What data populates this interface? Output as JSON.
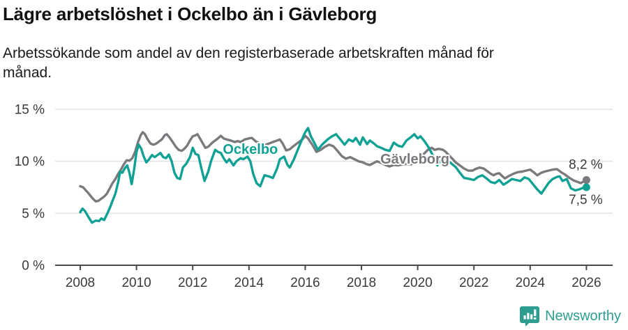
{
  "title": "Lägre arbetslöshet i Ockelbo än i Gävleborg",
  "subtitle": {
    "line1": "Arbetssökande som andel av den registerbaserade arbetskraften månad för",
    "line2": "månad."
  },
  "footer": {
    "brand": "Newsworthy",
    "logo_icon": "newsworthy-chart-bubble-icon"
  },
  "colors": {
    "ockelbo_teal": "#0fa194",
    "gavleborg_gray": "#7a7a7e",
    "gridline": "#e2e2e2",
    "axis": "#4b4b4b",
    "tick_text": "#3a3a3a",
    "title_text": "#111111",
    "brand_teal": "#2d9d90",
    "background": "#ffffff"
  },
  "chart_data": {
    "type": "line",
    "title": "Lägre arbetslöshet i Ockelbo än i Gävleborg",
    "subtitle": "Arbetssökande som andel av den registerbaserade arbetskraften månad för månad.",
    "xlabel": "",
    "ylabel": "",
    "grid": "horizontal",
    "legend_position": "inline-labels",
    "xlim": [
      2007.1,
      2026.9
    ],
    "ylim": [
      0,
      15.5
    ],
    "x_ticks": [
      2008,
      2010,
      2012,
      2014,
      2016,
      2018,
      2020,
      2022,
      2024,
      2026
    ],
    "y_ticks": [
      {
        "value": 0,
        "label": "0 %"
      },
      {
        "value": 5,
        "label": "5 %"
      },
      {
        "value": 10,
        "label": "10 %"
      },
      {
        "value": 15,
        "label": "15 %"
      }
    ],
    "series": [
      {
        "name": "Gävleborg",
        "color": "#7a7a7e",
        "label_anchor": {
          "x": 2019.9,
          "y": 10.25
        },
        "end_value": 8.2,
        "end_label": "8,2 %",
        "points": [
          [
            2008.0,
            7.6
          ],
          [
            2008.1,
            7.5
          ],
          [
            2008.2,
            7.2
          ],
          [
            2008.3,
            6.9
          ],
          [
            2008.45,
            6.4
          ],
          [
            2008.55,
            6.15
          ],
          [
            2008.65,
            6.2
          ],
          [
            2008.75,
            6.4
          ],
          [
            2008.85,
            6.6
          ],
          [
            2008.95,
            6.9
          ],
          [
            2009.05,
            7.4
          ],
          [
            2009.15,
            7.9
          ],
          [
            2009.25,
            8.3
          ],
          [
            2009.35,
            8.8
          ],
          [
            2009.45,
            9.2
          ],
          [
            2009.55,
            9.7
          ],
          [
            2009.65,
            10.1
          ],
          [
            2009.75,
            10.05
          ],
          [
            2009.85,
            10.3
          ],
          [
            2009.95,
            10.9
          ],
          [
            2010.05,
            11.8
          ],
          [
            2010.15,
            12.5
          ],
          [
            2010.22,
            12.8
          ],
          [
            2010.3,
            12.6
          ],
          [
            2010.4,
            12.1
          ],
          [
            2010.5,
            11.7
          ],
          [
            2010.6,
            11.6
          ],
          [
            2010.7,
            11.7
          ],
          [
            2010.8,
            11.9
          ],
          [
            2010.9,
            12.1
          ],
          [
            2011.0,
            12.5
          ],
          [
            2011.08,
            12.6
          ],
          [
            2011.2,
            12.2
          ],
          [
            2011.3,
            11.8
          ],
          [
            2011.4,
            11.4
          ],
          [
            2011.5,
            11.1
          ],
          [
            2011.6,
            11.0
          ],
          [
            2011.7,
            11.2
          ],
          [
            2011.8,
            11.5
          ],
          [
            2011.9,
            12.0
          ],
          [
            2012.0,
            12.4
          ],
          [
            2012.1,
            12.5
          ],
          [
            2012.17,
            12.6
          ],
          [
            2012.3,
            12.0
          ],
          [
            2012.45,
            11.3
          ],
          [
            2012.55,
            11.4
          ],
          [
            2012.7,
            11.8
          ],
          [
            2012.85,
            12.1
          ],
          [
            2013.0,
            12.45
          ],
          [
            2013.1,
            12.2
          ],
          [
            2013.2,
            12.1
          ],
          [
            2013.35,
            12.0
          ],
          [
            2013.5,
            11.85
          ],
          [
            2013.6,
            11.95
          ],
          [
            2013.7,
            11.85
          ],
          [
            2013.85,
            12.1
          ],
          [
            2014.0,
            12.2
          ],
          [
            2014.1,
            12.25
          ],
          [
            2014.25,
            11.9
          ],
          [
            2014.4,
            11.7
          ],
          [
            2014.55,
            11.55
          ],
          [
            2014.7,
            11.7
          ],
          [
            2014.85,
            11.85
          ],
          [
            2015.0,
            12.0
          ],
          [
            2015.1,
            12.1
          ],
          [
            2015.2,
            11.7
          ],
          [
            2015.32,
            11.05
          ],
          [
            2015.45,
            11.15
          ],
          [
            2015.6,
            11.5
          ],
          [
            2015.75,
            11.8
          ],
          [
            2015.9,
            12.1
          ],
          [
            2016.0,
            12.45
          ],
          [
            2016.1,
            12.2
          ],
          [
            2016.25,
            11.6
          ],
          [
            2016.4,
            10.9
          ],
          [
            2016.55,
            11.1
          ],
          [
            2016.7,
            11.4
          ],
          [
            2016.85,
            11.6
          ],
          [
            2017.0,
            11.45
          ],
          [
            2017.15,
            11.0
          ],
          [
            2017.3,
            10.5
          ],
          [
            2017.45,
            10.25
          ],
          [
            2017.6,
            10.4
          ],
          [
            2017.75,
            10.2
          ],
          [
            2017.9,
            10.0
          ],
          [
            2018.05,
            9.9
          ],
          [
            2018.2,
            9.7
          ],
          [
            2018.3,
            9.65
          ],
          [
            2018.45,
            9.85
          ],
          [
            2018.55,
            10.0
          ],
          [
            2018.7,
            9.85
          ],
          [
            2018.85,
            9.65
          ],
          [
            2019.0,
            9.5
          ],
          [
            2019.15,
            9.65
          ],
          [
            2019.3,
            9.6
          ],
          [
            2019.45,
            9.7
          ],
          [
            2019.6,
            9.75
          ],
          [
            2019.75,
            9.7
          ],
          [
            2019.9,
            9.85
          ],
          [
            2020.0,
            10.0
          ],
          [
            2020.1,
            10.3
          ],
          [
            2020.25,
            10.8
          ],
          [
            2020.4,
            11.2
          ],
          [
            2020.5,
            11.3
          ],
          [
            2020.6,
            11.1
          ],
          [
            2020.75,
            11.2
          ],
          [
            2020.9,
            11.1
          ],
          [
            2021.0,
            10.9
          ],
          [
            2021.1,
            10.6
          ],
          [
            2021.25,
            10.2
          ],
          [
            2021.35,
            9.9
          ],
          [
            2021.5,
            9.6
          ],
          [
            2021.65,
            9.3
          ],
          [
            2021.8,
            9.1
          ],
          [
            2021.95,
            9.1
          ],
          [
            2022.05,
            9.25
          ],
          [
            2022.2,
            9.4
          ],
          [
            2022.35,
            9.3
          ],
          [
            2022.5,
            9.0
          ],
          [
            2022.6,
            8.8
          ],
          [
            2022.7,
            8.65
          ],
          [
            2022.8,
            8.8
          ],
          [
            2022.9,
            8.85
          ],
          [
            2023.0,
            8.6
          ],
          [
            2023.1,
            8.35
          ],
          [
            2023.25,
            8.6
          ],
          [
            2023.4,
            8.8
          ],
          [
            2023.55,
            8.95
          ],
          [
            2023.7,
            9.0
          ],
          [
            2023.85,
            9.1
          ],
          [
            2024.0,
            9.2
          ],
          [
            2024.1,
            9.0
          ],
          [
            2024.25,
            8.65
          ],
          [
            2024.4,
            8.9
          ],
          [
            2024.5,
            9.0
          ],
          [
            2024.65,
            9.1
          ],
          [
            2024.8,
            9.2
          ],
          [
            2024.95,
            9.25
          ],
          [
            2025.1,
            8.95
          ],
          [
            2025.25,
            8.7
          ],
          [
            2025.4,
            8.4
          ],
          [
            2025.55,
            8.15
          ],
          [
            2025.7,
            8.0
          ],
          [
            2025.8,
            7.9
          ],
          [
            2025.9,
            8.05
          ],
          [
            2026.0,
            8.2
          ]
        ]
      },
      {
        "name": "Ockelbo",
        "color": "#0fa194",
        "label_anchor": {
          "x": 2014.05,
          "y": 11.2
        },
        "end_value": 7.5,
        "end_label": "7,5 %",
        "points": [
          [
            2008.0,
            5.1
          ],
          [
            2008.08,
            5.45
          ],
          [
            2008.17,
            5.2
          ],
          [
            2008.3,
            4.6
          ],
          [
            2008.42,
            4.1
          ],
          [
            2008.55,
            4.3
          ],
          [
            2008.67,
            4.25
          ],
          [
            2008.75,
            4.5
          ],
          [
            2008.85,
            4.35
          ],
          [
            2008.95,
            4.9
          ],
          [
            2009.05,
            5.5
          ],
          [
            2009.15,
            6.2
          ],
          [
            2009.25,
            6.9
          ],
          [
            2009.35,
            8.0
          ],
          [
            2009.42,
            9.0
          ],
          [
            2009.5,
            8.9
          ],
          [
            2009.58,
            9.3
          ],
          [
            2009.67,
            9.6
          ],
          [
            2009.75,
            8.9
          ],
          [
            2009.83,
            7.8
          ],
          [
            2009.92,
            9.3
          ],
          [
            2010.0,
            10.9
          ],
          [
            2010.08,
            11.6
          ],
          [
            2010.17,
            11.2
          ],
          [
            2010.25,
            10.5
          ],
          [
            2010.35,
            9.9
          ],
          [
            2010.45,
            10.2
          ],
          [
            2010.55,
            10.6
          ],
          [
            2010.65,
            10.4
          ],
          [
            2010.75,
            10.6
          ],
          [
            2010.85,
            10.8
          ],
          [
            2010.95,
            10.4
          ],
          [
            2011.05,
            10.3
          ],
          [
            2011.15,
            10.65
          ],
          [
            2011.25,
            10.0
          ],
          [
            2011.35,
            8.9
          ],
          [
            2011.45,
            8.4
          ],
          [
            2011.55,
            8.3
          ],
          [
            2011.65,
            9.4
          ],
          [
            2011.78,
            9.8
          ],
          [
            2011.9,
            10.4
          ],
          [
            2012.0,
            11.3
          ],
          [
            2012.1,
            10.7
          ],
          [
            2012.2,
            10.6
          ],
          [
            2012.3,
            9.4
          ],
          [
            2012.42,
            8.1
          ],
          [
            2012.55,
            9.0
          ],
          [
            2012.65,
            10.0
          ],
          [
            2012.8,
            11.1
          ],
          [
            2012.9,
            10.9
          ],
          [
            2013.0,
            10.8
          ],
          [
            2013.1,
            10.3
          ],
          [
            2013.2,
            9.9
          ],
          [
            2013.3,
            10.2
          ],
          [
            2013.45,
            9.6
          ],
          [
            2013.55,
            10.0
          ],
          [
            2013.7,
            10.3
          ],
          [
            2013.8,
            10.2
          ],
          [
            2013.95,
            10.45
          ],
          [
            2014.05,
            10.0
          ],
          [
            2014.15,
            8.8
          ],
          [
            2014.27,
            7.9
          ],
          [
            2014.4,
            7.6
          ],
          [
            2014.55,
            8.65
          ],
          [
            2014.7,
            8.55
          ],
          [
            2014.85,
            8.4
          ],
          [
            2015.0,
            9.3
          ],
          [
            2015.1,
            10.2
          ],
          [
            2015.25,
            10.45
          ],
          [
            2015.37,
            9.65
          ],
          [
            2015.45,
            9.4
          ],
          [
            2015.6,
            10.2
          ],
          [
            2015.75,
            11.2
          ],
          [
            2015.9,
            12.2
          ],
          [
            2016.0,
            12.8
          ],
          [
            2016.1,
            13.2
          ],
          [
            2016.2,
            12.4
          ],
          [
            2016.3,
            11.9
          ],
          [
            2016.45,
            11.1
          ],
          [
            2016.6,
            11.6
          ],
          [
            2016.8,
            12.1
          ],
          [
            2016.95,
            12.4
          ],
          [
            2017.1,
            12.6
          ],
          [
            2017.25,
            12.1
          ],
          [
            2017.4,
            11.6
          ],
          [
            2017.55,
            12.1
          ],
          [
            2017.7,
            11.9
          ],
          [
            2017.8,
            12.25
          ],
          [
            2017.95,
            11.6
          ],
          [
            2018.05,
            12.3
          ],
          [
            2018.2,
            11.65
          ],
          [
            2018.3,
            12.0
          ],
          [
            2018.45,
            11.7
          ],
          [
            2018.55,
            11.45
          ],
          [
            2018.7,
            11.3
          ],
          [
            2018.85,
            11.1
          ],
          [
            2019.0,
            11.0
          ],
          [
            2019.15,
            11.8
          ],
          [
            2019.3,
            11.5
          ],
          [
            2019.45,
            11.4
          ],
          [
            2019.6,
            12.0
          ],
          [
            2019.75,
            12.3
          ],
          [
            2019.88,
            12.6
          ],
          [
            2020.0,
            12.2
          ],
          [
            2020.1,
            12.4
          ],
          [
            2020.25,
            11.9
          ],
          [
            2020.4,
            11.3
          ],
          [
            2020.55,
            10.5
          ],
          [
            2020.7,
            9.6
          ],
          [
            2020.85,
            10.2
          ],
          [
            2021.0,
            10.1
          ],
          [
            2021.15,
            9.9
          ],
          [
            2021.35,
            9.45
          ],
          [
            2021.5,
            8.9
          ],
          [
            2021.65,
            8.4
          ],
          [
            2021.85,
            8.3
          ],
          [
            2022.0,
            8.2
          ],
          [
            2022.15,
            8.5
          ],
          [
            2022.3,
            8.65
          ],
          [
            2022.45,
            8.35
          ],
          [
            2022.6,
            8.0
          ],
          [
            2022.75,
            7.9
          ],
          [
            2022.9,
            8.2
          ],
          [
            2023.05,
            7.75
          ],
          [
            2023.2,
            8.0
          ],
          [
            2023.35,
            8.3
          ],
          [
            2023.5,
            8.2
          ],
          [
            2023.65,
            8.1
          ],
          [
            2023.8,
            8.45
          ],
          [
            2023.95,
            8.3
          ],
          [
            2024.1,
            7.8
          ],
          [
            2024.25,
            7.3
          ],
          [
            2024.4,
            6.9
          ],
          [
            2024.55,
            7.5
          ],
          [
            2024.65,
            7.9
          ],
          [
            2024.8,
            8.3
          ],
          [
            2024.95,
            8.5
          ],
          [
            2025.05,
            8.55
          ],
          [
            2025.15,
            8.1
          ],
          [
            2025.3,
            8.3
          ],
          [
            2025.45,
            7.4
          ],
          [
            2025.6,
            7.2
          ],
          [
            2025.75,
            7.3
          ],
          [
            2025.88,
            7.45
          ],
          [
            2026.0,
            7.5
          ]
        ]
      }
    ]
  }
}
